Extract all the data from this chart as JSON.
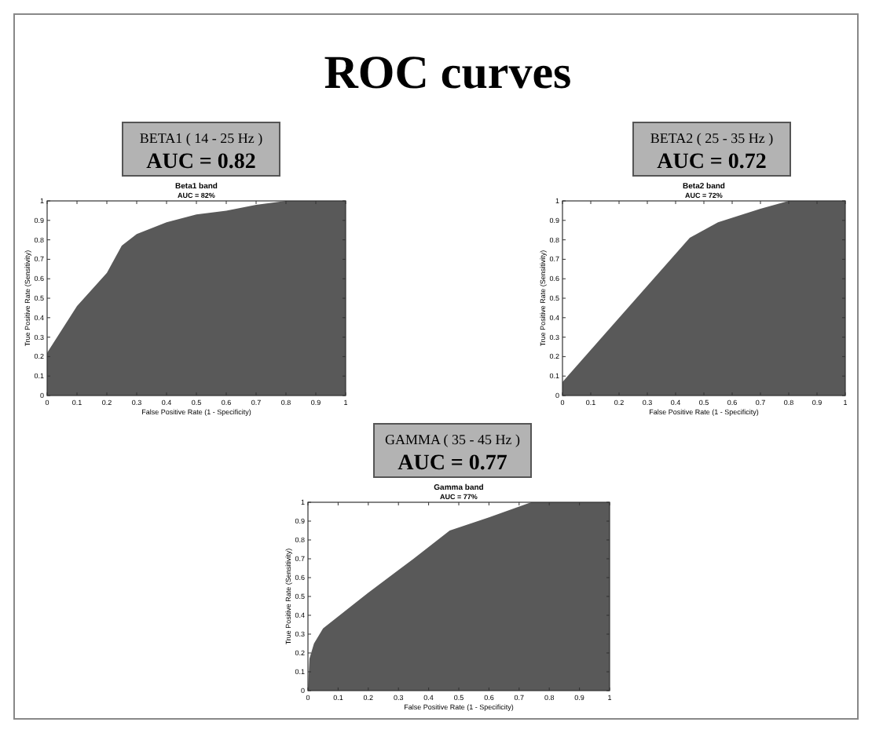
{
  "chart_data": [
    {
      "type": "other",
      "title": "ROC curves"
    },
    {
      "type": "area",
      "title": "Beta1 band",
      "subtitle": "AUC = 82%",
      "xlabel": "False Positive Rate (1 - Specificity)",
      "ylabel": "True Positive Rate (Sensitivity)",
      "annotations": [
        "BETA1 ( 14 - 25 Hz )",
        "AUC = 0.82"
      ],
      "x": [
        0,
        0.1,
        0.2,
        0.25,
        0.3,
        0.4,
        0.5,
        0.6,
        0.7,
        0.8,
        1
      ],
      "values": [
        0.22,
        0.46,
        0.63,
        0.77,
        0.83,
        0.89,
        0.93,
        0.95,
        0.98,
        1,
        1
      ],
      "color": "#595959",
      "xlim": [
        0,
        1
      ],
      "ylim": [
        0,
        1
      ],
      "xticks": [
        0,
        0.1,
        0.2,
        0.3,
        0.4,
        0.5,
        0.6,
        0.7,
        0.8,
        0.9,
        1
      ],
      "yticks": [
        0,
        0.1,
        0.2,
        0.3,
        0.4,
        0.5,
        0.6,
        0.7,
        0.8,
        0.9,
        1
      ]
    },
    {
      "type": "area",
      "title": "Beta2 band",
      "subtitle": "AUC = 72%",
      "xlabel": "False Positive Rate (1 - Specificity)",
      "ylabel": "True Positive Rate (Sensitivity)",
      "annotations": [
        "BETA2 ( 25 - 35 Hz )",
        "AUC = 0.72"
      ],
      "x": [
        0,
        0.45,
        0.55,
        0.7,
        0.8,
        1
      ],
      "values": [
        0.07,
        0.81,
        0.89,
        0.96,
        1,
        1
      ],
      "color": "#595959",
      "xlim": [
        0,
        1
      ],
      "ylim": [
        0,
        1
      ],
      "xticks": [
        0,
        0.1,
        0.2,
        0.3,
        0.4,
        0.5,
        0.6,
        0.7,
        0.8,
        0.9,
        1
      ],
      "yticks": [
        0,
        0.1,
        0.2,
        0.3,
        0.4,
        0.5,
        0.6,
        0.7,
        0.8,
        0.9,
        1
      ]
    },
    {
      "type": "area",
      "title": "Gamma band",
      "subtitle": "AUC = 77%",
      "xlabel": "False Positive Rate (1 - Specificity)",
      "ylabel": "True Positive Rate (Sensitivity)",
      "annotations": [
        "GAMMA ( 35 - 45 Hz )",
        "AUC = 0.77"
      ],
      "x": [
        0,
        0.005,
        0.02,
        0.05,
        0.2,
        0.35,
        0.47,
        0.6,
        0.74,
        1
      ],
      "values": [
        0,
        0.17,
        0.25,
        0.33,
        0.52,
        0.7,
        0.85,
        0.92,
        1,
        1
      ],
      "color": "#595959",
      "xlim": [
        0,
        1
      ],
      "ylim": [
        0,
        1
      ],
      "xticks": [
        0,
        0.1,
        0.2,
        0.3,
        0.4,
        0.5,
        0.6,
        0.7,
        0.8,
        0.9,
        1
      ],
      "yticks": [
        0,
        0.1,
        0.2,
        0.3,
        0.4,
        0.5,
        0.6,
        0.7,
        0.8,
        0.9,
        1
      ]
    }
  ]
}
